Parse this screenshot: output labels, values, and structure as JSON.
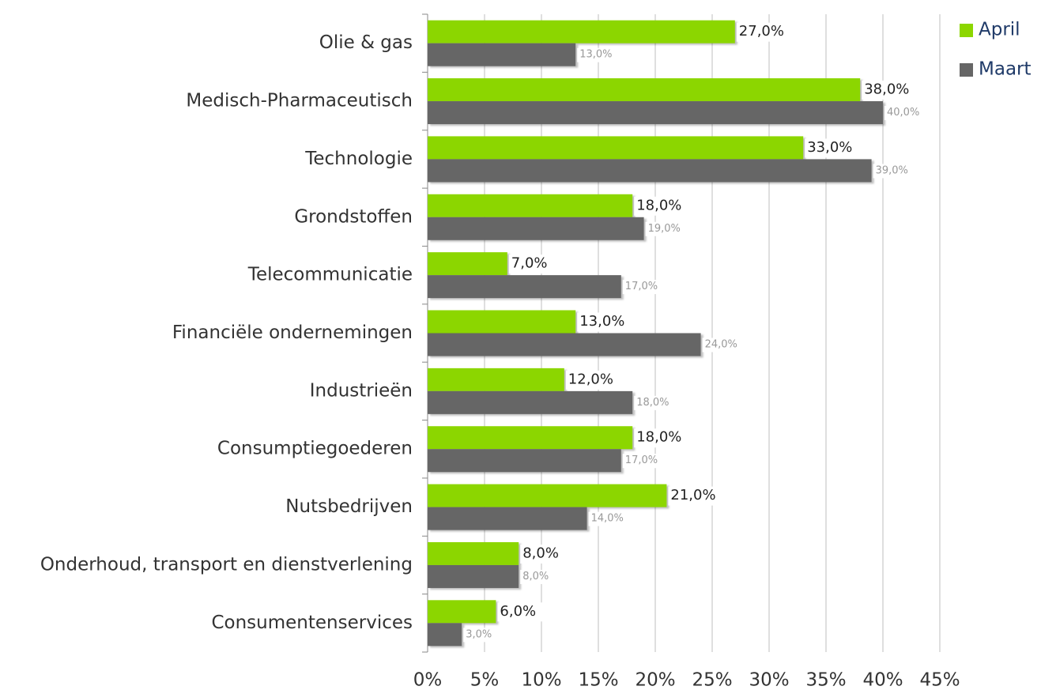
{
  "chart_data": {
    "type": "hbar",
    "categories": [
      "Olie & gas",
      "Medisch-Pharmaceutisch",
      "Technologie",
      "Grondstoffen",
      "Telecommunicatie",
      "Financiële ondernemingen",
      "Industrieën",
      "Consumptiegoederen",
      "Nutsbedrijven",
      "Onderhoud, transport en dienstverlening",
      "Consumentenservices"
    ],
    "series": [
      {
        "name": "April",
        "color": "#8cd600",
        "values": [
          27,
          38,
          33,
          18,
          7,
          13,
          12,
          18,
          21,
          8,
          6
        ],
        "value_labels": [
          "27,0%",
          "38,0%",
          "33,0%",
          "18,0%",
          "7,0%",
          "13,0%",
          "12,0%",
          "18,0%",
          "21,0%",
          "8,0%",
          "6,0%"
        ]
      },
      {
        "name": "Maart",
        "color": "#666666",
        "values": [
          13,
          40,
          39,
          19,
          17,
          24,
          18,
          17,
          14,
          8,
          3
        ],
        "value_labels": [
          "13,0%",
          "40,0%",
          "39,0%",
          "19,0%",
          "17,0%",
          "24,0%",
          "18,0%",
          "17,0%",
          "14,0%",
          "8,0%",
          "3,0%"
        ]
      }
    ],
    "xlim": [
      0,
      45
    ],
    "xticks": [
      {
        "value": 0,
        "label": "0%"
      },
      {
        "value": 5,
        "label": "5%"
      },
      {
        "value": 10,
        "label": "10%"
      },
      {
        "value": 15,
        "label": "15%"
      },
      {
        "value": 20,
        "label": "20%"
      },
      {
        "value": 25,
        "label": "25%"
      },
      {
        "value": 30,
        "label": "30%"
      },
      {
        "value": 35,
        "label": "35%"
      },
      {
        "value": 40,
        "label": "40%"
      },
      {
        "value": 45,
        "label": "45%"
      }
    ],
    "grid": true,
    "legend": "top-right"
  }
}
